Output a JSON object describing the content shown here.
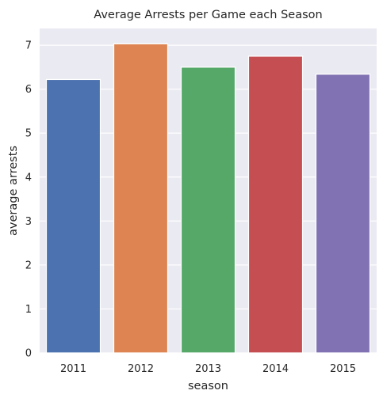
{
  "chart_data": {
    "type": "bar",
    "title": "Average Arrests per Game each Season",
    "xlabel": "season",
    "ylabel": "average arrests",
    "categories": [
      "2011",
      "2012",
      "2013",
      "2014",
      "2015"
    ],
    "values": [
      6.22,
      7.03,
      6.5,
      6.75,
      6.34
    ],
    "colors": [
      "#4c72b0",
      "#dd8452",
      "#55a868",
      "#c44e52",
      "#8172b3"
    ],
    "ylim": [
      0,
      7.38
    ],
    "yticks": [
      "0",
      "1",
      "2",
      "3",
      "4",
      "5",
      "6",
      "7"
    ],
    "grid": true,
    "background": "#eaeaf2"
  }
}
